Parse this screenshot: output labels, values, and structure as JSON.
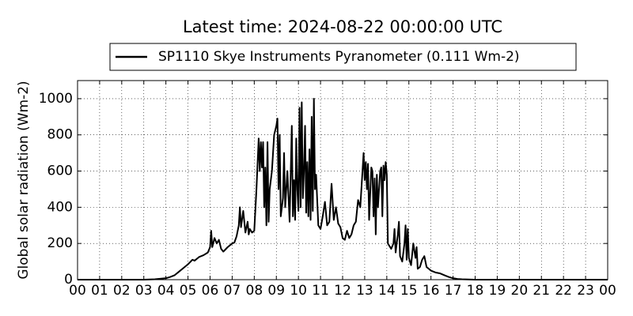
{
  "chart_data": {
    "type": "line",
    "title": "Latest time: 2024-08-22 00:00:00 UTC",
    "y_label": "Global solar radiation (Wm-2)",
    "x": [
      0,
      3.0,
      3.5,
      4.0,
      4.2,
      4.4,
      4.6,
      4.8,
      5.0,
      5.2,
      5.3,
      5.5,
      5.7,
      5.9,
      6.0,
      6.05,
      6.1,
      6.2,
      6.3,
      6.4,
      6.5,
      6.6,
      6.8,
      7.0,
      7.1,
      7.2,
      7.3,
      7.35,
      7.4,
      7.5,
      7.6,
      7.7,
      7.75,
      7.8,
      7.9,
      8.0,
      8.1,
      8.2,
      8.25,
      8.3,
      8.35,
      8.4,
      8.45,
      8.5,
      8.55,
      8.6,
      8.65,
      8.7,
      8.8,
      8.9,
      9.0,
      9.05,
      9.1,
      9.15,
      9.2,
      9.3,
      9.35,
      9.4,
      9.5,
      9.6,
      9.7,
      9.75,
      9.8,
      9.85,
      9.9,
      9.95,
      10.0,
      10.05,
      10.1,
      10.15,
      10.2,
      10.25,
      10.3,
      10.35,
      10.4,
      10.45,
      10.5,
      10.55,
      10.6,
      10.65,
      10.7,
      10.75,
      10.8,
      10.9,
      11.0,
      11.1,
      11.2,
      11.3,
      11.4,
      11.5,
      11.6,
      11.7,
      11.8,
      11.9,
      12.0,
      12.1,
      12.2,
      12.3,
      12.4,
      12.5,
      12.6,
      12.7,
      12.8,
      12.9,
      12.95,
      13.0,
      13.05,
      13.1,
      13.15,
      13.2,
      13.3,
      13.35,
      13.4,
      13.45,
      13.5,
      13.55,
      13.6,
      13.7,
      13.75,
      13.8,
      13.85,
      13.9,
      13.95,
      14.0,
      14.05,
      14.1,
      14.2,
      14.3,
      14.35,
      14.4,
      14.5,
      14.55,
      14.6,
      14.7,
      14.8,
      14.85,
      14.9,
      14.95,
      15.0,
      15.1,
      15.2,
      15.3,
      15.35,
      15.4,
      15.5,
      15.6,
      15.7,
      15.8,
      15.9,
      16.0,
      16.2,
      16.4,
      16.6,
      16.8,
      17.0,
      17.2,
      17.4,
      18.0,
      24
    ],
    "series": [
      {
        "name": "SP1110 Skye Instruments Pyranometer (0.111 Wm-2)",
        "color": "#000000",
        "values": [
          0,
          0,
          2,
          8,
          15,
          25,
          45,
          65,
          85,
          110,
          105,
          125,
          135,
          150,
          180,
          270,
          180,
          230,
          200,
          220,
          170,
          155,
          180,
          200,
          205,
          240,
          300,
          400,
          290,
          380,
          260,
          320,
          250,
          280,
          260,
          270,
          500,
          780,
          600,
          760,
          620,
          760,
          400,
          620,
          300,
          760,
          320,
          500,
          600,
          800,
          850,
          890,
          500,
          800,
          350,
          450,
          700,
          400,
          600,
          320,
          850,
          350,
          550,
          330,
          780,
          500,
          380,
          950,
          400,
          980,
          450,
          600,
          850,
          370,
          650,
          350,
          720,
          330,
          900,
          380,
          1000,
          500,
          580,
          300,
          280,
          350,
          430,
          300,
          320,
          530,
          330,
          400,
          310,
          290,
          230,
          220,
          270,
          230,
          250,
          300,
          320,
          440,
          400,
          600,
          700,
          550,
          650,
          500,
          640,
          330,
          620,
          600,
          350,
          560,
          250,
          580,
          400,
          600,
          620,
          350,
          630,
          550,
          650,
          580,
          200,
          190,
          170,
          200,
          280,
          150,
          250,
          320,
          130,
          100,
          200,
          300,
          110,
          280,
          120,
          80,
          200,
          120,
          180,
          60,
          70,
          110,
          130,
          70,
          60,
          50,
          40,
          35,
          25,
          15,
          8,
          4,
          2,
          0,
          0
        ]
      }
    ],
    "xlim": [
      0,
      24
    ],
    "xticks": [
      {
        "value": 0,
        "label": "00"
      },
      {
        "value": 1,
        "label": "01"
      },
      {
        "value": 2,
        "label": "02"
      },
      {
        "value": 3,
        "label": "03"
      },
      {
        "value": 4,
        "label": "04"
      },
      {
        "value": 5,
        "label": "05"
      },
      {
        "value": 6,
        "label": "06"
      },
      {
        "value": 7,
        "label": "07"
      },
      {
        "value": 8,
        "label": "08"
      },
      {
        "value": 9,
        "label": "09"
      },
      {
        "value": 10,
        "label": "10"
      },
      {
        "value": 11,
        "label": "11"
      },
      {
        "value": 12,
        "label": "12"
      },
      {
        "value": 13,
        "label": "13"
      },
      {
        "value": 14,
        "label": "14"
      },
      {
        "value": 15,
        "label": "15"
      },
      {
        "value": 16,
        "label": "16"
      },
      {
        "value": 17,
        "label": "17"
      },
      {
        "value": 18,
        "label": "18"
      },
      {
        "value": 19,
        "label": "19"
      },
      {
        "value": 20,
        "label": "20"
      },
      {
        "value": 21,
        "label": "21"
      },
      {
        "value": 22,
        "label": "22"
      },
      {
        "value": 23,
        "label": "23"
      },
      {
        "value": 24,
        "label": "00"
      }
    ],
    "ylim": [
      0,
      1100
    ],
    "yticks": [
      0,
      200,
      400,
      600,
      800,
      1000
    ],
    "grid": true
  }
}
